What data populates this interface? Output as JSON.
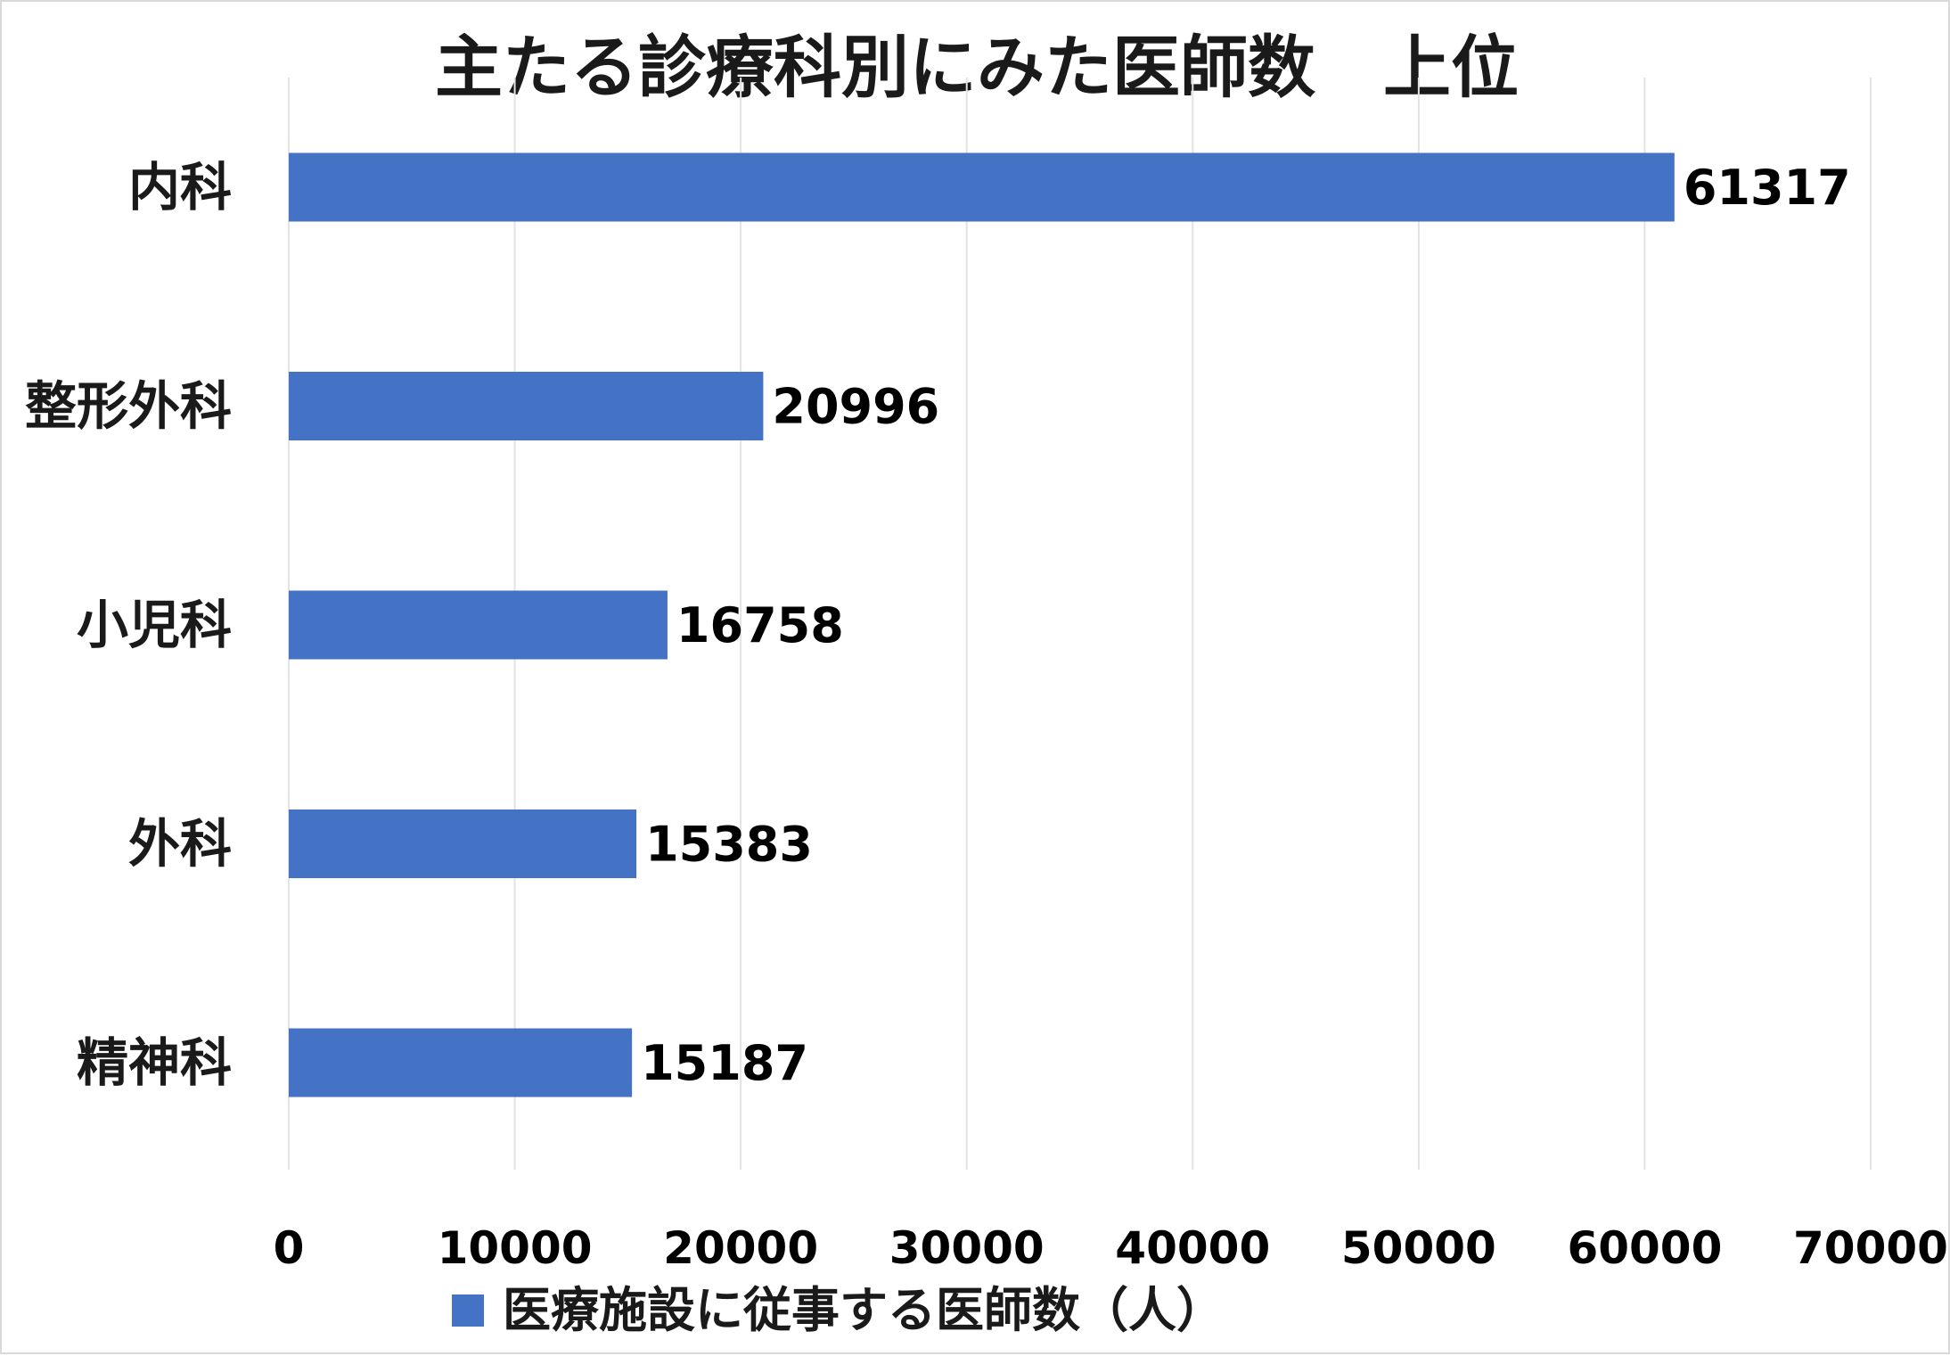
{
  "chart_data": {
    "type": "bar",
    "orientation": "horizontal",
    "title": "主たる診療科別にみた医師数　上位",
    "categories": [
      "内科",
      "整形外科",
      "小児科",
      "外科",
      "精神科"
    ],
    "series": [
      {
        "name": "医療施設に従事する医師数（人）",
        "values": [
          61317,
          20996,
          16758,
          15383,
          15187
        ],
        "color": "#4472c4"
      }
    ],
    "data_labels": [
      "61317",
      "20996",
      "16758",
      "15383",
      "15187"
    ],
    "x_ticks": [
      "0",
      "10000",
      "20000",
      "30000",
      "40000",
      "50000",
      "60000",
      "70000"
    ],
    "xlim": [
      0,
      70000
    ],
    "grid": "vertical",
    "legend_position": "bottom"
  }
}
